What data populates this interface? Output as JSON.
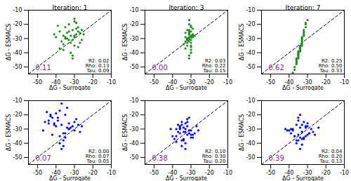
{
  "chart_data": [
    {
      "type": "scatter",
      "title": "Iteration: 1",
      "xlabel": "ΔG - Surrogate",
      "ylabel": "ΔG - ESMACS",
      "color": "#1e8c1e",
      "xlim": [
        -55,
        -10
      ],
      "ylim": [
        -55,
        -10
      ],
      "xticks": [
        -50,
        -40,
        -30,
        -20,
        -10
      ],
      "yticks": [
        -50,
        -40,
        -30,
        -20,
        -10
      ],
      "stats": [
        "R2: 0.02",
        "Rho: 0.13",
        "Tau: 0.09"
      ],
      "annotations": [
        {
          "text": "0.11",
          "color": "#7b2d8e"
        }
      ],
      "x": [
        -32,
        -28,
        -35,
        -30,
        -38,
        -26,
        -33,
        -29,
        -36,
        -31,
        -40,
        -27,
        -34,
        -30,
        -37,
        -25,
        -32,
        -29,
        -35,
        -31,
        -39,
        -28,
        -33,
        -30,
        -36,
        -26,
        -34,
        -31,
        -41,
        -29,
        -32,
        -27,
        -35,
        -30,
        -38,
        -33,
        -28,
        -31,
        -36,
        -30
      ],
      "y": [
        -28,
        -22,
        -30,
        -35,
        -25,
        -31,
        -20,
        -27,
        -38,
        -24,
        -29,
        -33,
        -26,
        -18,
        -32,
        -27,
        -40,
        -23,
        -29,
        -31,
        -21,
        -36,
        -25,
        -28,
        -34,
        -24,
        -30,
        -42,
        -27,
        -19,
        -33,
        -26,
        -22,
        -29,
        -37,
        -31,
        -25,
        -44,
        -28,
        -16
      ]
    },
    {
      "type": "scatter",
      "title": "Iteration: 3",
      "xlabel": "ΔG - Surrogate",
      "ylabel": "ΔG - ESMACS",
      "color": "#1e8c1e",
      "xlim": [
        -55,
        -10
      ],
      "ylim": [
        -55,
        -10
      ],
      "xticks": [
        -50,
        -40,
        -30,
        -20,
        -10
      ],
      "yticks": [
        -50,
        -40,
        -30,
        -20,
        -10
      ],
      "stats": [
        "R2: 0.03",
        "Rho: 0.22",
        "Tau: 0.15"
      ],
      "annotations": [
        {
          "text": "0.00",
          "color": "#7b2d8e"
        }
      ],
      "x": [
        -31,
        -30,
        -32,
        -29,
        -31,
        -33,
        -30,
        -31,
        -32,
        -30,
        -29,
        -31,
        -33,
        -30,
        -32,
        -31,
        -30,
        -29,
        -32,
        -31,
        -30,
        -34,
        -31,
        -30,
        -32,
        -29,
        -31,
        -30,
        -33,
        -31,
        -30,
        -32,
        -31,
        -28,
        -30,
        -31,
        -32,
        -30,
        -31,
        -33
      ],
      "y": [
        -30,
        -25,
        -35,
        -28,
        -20,
        -32,
        -38,
        -27,
        -24,
        -31,
        -29,
        -42,
        -26,
        -22,
        -33,
        -29,
        -36,
        -27,
        -31,
        -17,
        -28,
        -34,
        -25,
        -40,
        -30,
        -23,
        -32,
        -29,
        -37,
        -26,
        -21,
        -31,
        -44,
        -28,
        -33,
        -24,
        -30,
        -35,
        -27,
        -29
      ]
    },
    {
      "type": "scatter",
      "title": "Iteration: 7",
      "xlabel": "ΔG - Surrogate",
      "ylabel": "ΔG - ESMACS",
      "color": "#1e8c1e",
      "xlim": [
        -55,
        -10
      ],
      "ylim": [
        -55,
        -10
      ],
      "xticks": [
        -50,
        -40,
        -30,
        -20,
        -10
      ],
      "yticks": [
        -50,
        -40,
        -30,
        -20,
        -10
      ],
      "stats": [
        "R2: 0.25",
        "Rho: 0.50",
        "Tau: 0.33"
      ],
      "annotations": [
        {
          "text": "0.62",
          "color": "#7b2d8e"
        }
      ],
      "x": [
        -34,
        -33,
        -35,
        -32,
        -36,
        -34,
        -31,
        -35,
        -33,
        -37,
        -34,
        -32,
        -36,
        -33,
        -35,
        -30,
        -34,
        -38,
        -33,
        -35,
        -32,
        -34,
        -36,
        -33,
        -31,
        -35,
        -34,
        -37,
        -33,
        -32,
        -35,
        -34,
        -36,
        -33,
        -31,
        -34,
        -35,
        -32,
        -33,
        -36
      ],
      "y": [
        -36,
        -30,
        -42,
        -25,
        -48,
        -38,
        -20,
        -44,
        -33,
        -52,
        -37,
        -28,
        -46,
        -32,
        -40,
        -17,
        -35,
        -54,
        -29,
        -41,
        -26,
        -39,
        -45,
        -34,
        -22,
        -43,
        -37,
        -50,
        -31,
        -24,
        -39,
        -36,
        -47,
        -30,
        -19,
        -38,
        -41,
        -27,
        -35,
        -44
      ]
    },
    {
      "type": "scatter",
      "xlabel": "ΔG - Surrogate",
      "ylabel": "ΔG - ESMACS",
      "color": "#0000ff",
      "xlim": [
        -55,
        -10
      ],
      "ylim": [
        -55,
        -10
      ],
      "xticks": [
        -50,
        -40,
        -30,
        -20,
        -10
      ],
      "yticks": [
        -50,
        -40,
        -30,
        -20,
        -10
      ],
      "stats": [
        "R2: 0.00",
        "Rho: 0.07",
        "Tau: 0.05"
      ],
      "annotations": [
        {
          "text": "0.07",
          "color": "#7b2d8e"
        }
      ],
      "x": [
        -37,
        -42,
        -33,
        -45,
        -30,
        -38,
        -40,
        -35,
        -27,
        -44,
        -36,
        -39,
        -32,
        -47,
        -34,
        -41,
        -29,
        -38,
        -43,
        -36,
        -31,
        -40,
        -35,
        -46,
        -33,
        -37,
        -28,
        -42,
        -39,
        -34,
        -36,
        -44,
        -30,
        -38,
        -41,
        -35,
        -26,
        -37,
        -43,
        -33
      ],
      "y": [
        -27,
        -22,
        -30,
        -18,
        -25,
        -35,
        -28,
        -20,
        -32,
        -26,
        -38,
        -24,
        -29,
        -31,
        -15,
        -27,
        -23,
        -40,
        -21,
        -33,
        -28,
        -19,
        -36,
        -25,
        -30,
        -12,
        -27,
        -34,
        -22,
        -29,
        -42,
        -24,
        -31,
        -17,
        -26,
        -33,
        -28,
        -44,
        -20,
        -26
      ]
    },
    {
      "type": "scatter",
      "xlabel": "ΔG - Surrogate",
      "ylabel": "ΔG - ESMACS",
      "color": "#0000ff",
      "xlim": [
        -55,
        -10
      ],
      "ylim": [
        -55,
        -10
      ],
      "xticks": [
        -50,
        -40,
        -30,
        -20,
        -10
      ],
      "yticks": [
        -50,
        -40,
        -30,
        -20,
        -10
      ],
      "stats": [
        "R2: 0.10",
        "Rho: 0.30",
        "Tau: 0.20"
      ],
      "annotations": [
        {
          "text": "0.38",
          "color": "#7b2d8e"
        }
      ],
      "x": [
        -33,
        -36,
        -30,
        -38,
        -32,
        -35,
        -28,
        -34,
        -40,
        -31,
        -37,
        -33,
        -29,
        -36,
        -32,
        -39,
        -34,
        -27,
        -35,
        -31,
        -33,
        -38,
        -30,
        -36,
        -34,
        -32,
        -41,
        -29,
        -35,
        -33,
        -37,
        -31,
        -34,
        -26,
        -36,
        -32,
        -38,
        -30,
        -33,
        -35
      ],
      "y": [
        -32,
        -28,
        -36,
        -30,
        -25,
        -38,
        -33,
        -29,
        -35,
        -31,
        -27,
        -40,
        -34,
        -30,
        -23,
        -37,
        -32,
        -28,
        -42,
        -33,
        -26,
        -35,
        -31,
        -29,
        -38,
        -34,
        -30,
        -36,
        -27,
        -44,
        -32,
        -22,
        -37,
        -31,
        -33,
        -28,
        -39,
        -34,
        -30,
        -25
      ]
    },
    {
      "type": "scatter",
      "xlabel": "ΔG - Surrogate",
      "ylabel": "ΔG - ESMACS",
      "color": "#0000ff",
      "xlim": [
        -55,
        -10
      ],
      "ylim": [
        -55,
        -10
      ],
      "xticks": [
        -50,
        -40,
        -30,
        -20,
        -10
      ],
      "yticks": [
        -50,
        -40,
        -30,
        -20,
        -10
      ],
      "stats": [
        "R2: 0.04",
        "Rho: 0.20",
        "Tau: 0.13"
      ],
      "annotations": [
        {
          "text": "0.39",
          "color": "#7b2d8e"
        }
      ],
      "x": [
        -33,
        -37,
        -30,
        -35,
        -28,
        -39,
        -32,
        -34,
        -41,
        -31,
        -36,
        -33,
        -26,
        -38,
        -32,
        -35,
        -29,
        -40,
        -34,
        -31,
        -37,
        -33,
        -24,
        -36,
        -30,
        -35,
        -42,
        -32,
        -34,
        -29,
        -38,
        -33,
        -36,
        -31,
        -27,
        -35,
        -33,
        -39,
        -30,
        -34
      ],
      "y": [
        -32,
        -35,
        -28,
        -38,
        -30,
        -33,
        -25,
        -36,
        -31,
        -29,
        -40,
        -27,
        -34,
        -30,
        -37,
        -22,
        -33,
        -31,
        -44,
        -28,
        -35,
        -32,
        -29,
        -38,
        -26,
        -34,
        -30,
        -36,
        -20,
        -33,
        -31,
        -41,
        -27,
        -35,
        -32,
        -24,
        -37,
        -30,
        -34,
        -29
      ]
    }
  ]
}
